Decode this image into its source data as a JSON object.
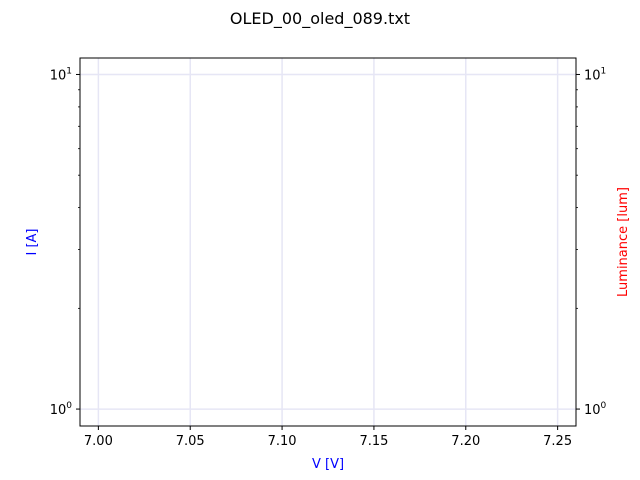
{
  "chart_data": {
    "type": "line",
    "title": "OLED_00_oled_089.txt",
    "xlabel": "V [V]",
    "ylabel_left": "I [A]",
    "ylabel_right": "Luminance [lum]",
    "xlim": [
      6.99,
      7.26
    ],
    "xticks": [
      7.0,
      7.05,
      7.1,
      7.15,
      7.2,
      7.25
    ],
    "xtick_labels": [
      "7.00",
      "7.05",
      "7.10",
      "7.15",
      "7.20",
      "7.25"
    ],
    "yscale_left": "log",
    "yscale_right": "log",
    "ylim_left": [
      0.89,
      11.2
    ],
    "ylim_right": [
      0.89,
      11.2
    ],
    "ytick_labels_left": [
      {
        "value": 1,
        "base": "10",
        "exp": "0"
      },
      {
        "value": 10,
        "base": "10",
        "exp": "1"
      }
    ],
    "ytick_labels_right": [
      {
        "value": 1,
        "base": "10",
        "exp": "0"
      },
      {
        "value": 10,
        "base": "10",
        "exp": "1"
      }
    ],
    "grid": true,
    "series": [],
    "colors": {
      "xlabel": "#0000ff",
      "ylabel_left": "#0000ff",
      "ylabel_right": "#ff0000",
      "grid": "#e6e6f5",
      "axes": "#000000"
    }
  }
}
